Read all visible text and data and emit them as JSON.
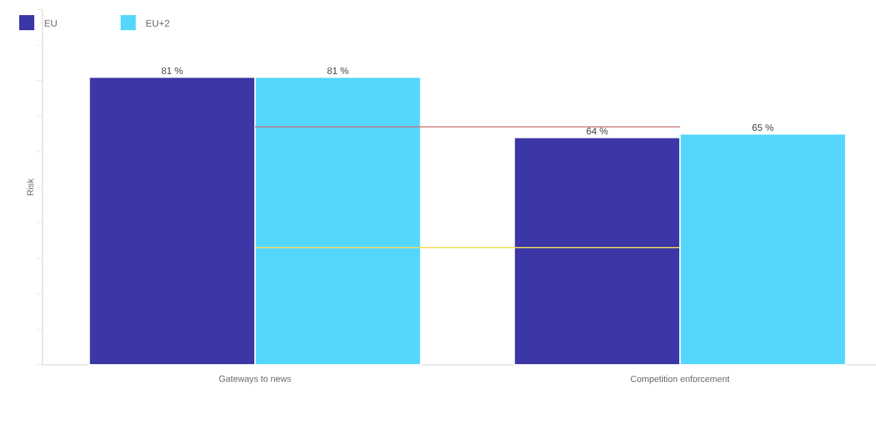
{
  "chart_data": {
    "type": "bar",
    "ylabel": "Risk",
    "categories": [
      "Gateways to news",
      "Competition enforcement"
    ],
    "series": [
      {
        "name": "EU",
        "color": "#3b37a6",
        "values": [
          81,
          64
        ],
        "value_labels": [
          "81 %",
          "64 %"
        ]
      },
      {
        "name": "EU+2",
        "color": "#55d7fd",
        "values": [
          81,
          65
        ],
        "value_labels": [
          "81 %",
          "65 %"
        ]
      }
    ],
    "ylim": [
      0,
      100
    ],
    "yticks": [
      {
        "value": 0,
        "label": null
      },
      {
        "value": 10,
        "label": null
      },
      {
        "value": 20,
        "label": null
      },
      {
        "value": 30,
        "label": null
      },
      {
        "value": 40,
        "label": null
      },
      {
        "value": 50,
        "label": null
      },
      {
        "value": 60,
        "label": null
      },
      {
        "value": 70,
        "label": null
      },
      {
        "value": 80,
        "label": null
      },
      {
        "value": 90,
        "label": null
      },
      {
        "value": 100,
        "label": null
      }
    ],
    "tick_labels": "x",
    "legend": "top left",
    "ref_lines": [
      {
        "axis": "y",
        "value": 67,
        "color": "#c86e6e"
      },
      {
        "axis": "y",
        "value": 33,
        "color": "#eedc5a"
      }
    ]
  }
}
